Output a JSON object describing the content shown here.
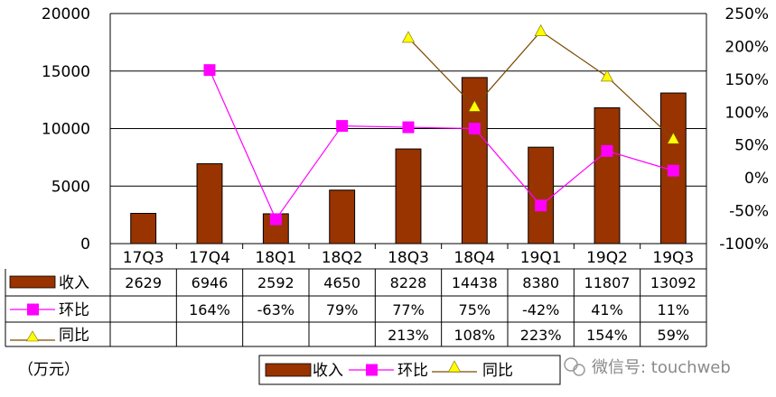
{
  "chart_data": {
    "type": "bar",
    "categories": [
      "17Q3",
      "17Q4",
      "18Q1",
      "18Q2",
      "18Q3",
      "18Q4",
      "19Q1",
      "19Q2",
      "19Q3"
    ],
    "series": [
      {
        "name": "收入",
        "type": "bar",
        "axis": "left",
        "values": [
          2629,
          6946,
          2592,
          4650,
          8228,
          14438,
          8380,
          11807,
          13092
        ],
        "labels": [
          "2629",
          "6946",
          "2592",
          "4650",
          "8228",
          "14438",
          "8380",
          "11807",
          "13092"
        ],
        "color": "#993300"
      },
      {
        "name": "环比",
        "type": "line",
        "axis": "right",
        "values": [
          null,
          164,
          -63,
          79,
          77,
          75,
          -42,
          41,
          11
        ],
        "labels": [
          "",
          "164%",
          "-63%",
          "79%",
          "77%",
          "75%",
          "-42%",
          "41%",
          "11%"
        ],
        "color": "#ff00ff"
      },
      {
        "name": "同比",
        "type": "line",
        "axis": "right",
        "values": [
          null,
          null,
          null,
          null,
          213,
          108,
          223,
          154,
          59
        ],
        "labels": [
          "",
          "",
          "",
          "",
          "213%",
          "108%",
          "223%",
          "154%",
          "59%"
        ],
        "color": "#ffff00",
        "line_color": "#7a4a00"
      }
    ],
    "y_left": {
      "ylim": [
        0,
        20000
      ],
      "ticks": [
        "0",
        "5000",
        "10000",
        "15000",
        "20000"
      ]
    },
    "y_right": {
      "ylim": [
        -100,
        250
      ],
      "ticks": [
        "-100%",
        "-50%",
        "0%",
        "50%",
        "100%",
        "150%",
        "200%",
        "250%"
      ]
    },
    "grid": true,
    "legend_position": "bottom",
    "unit_label": "（万元）"
  },
  "watermark": {
    "text": "微信号: touchweb"
  }
}
